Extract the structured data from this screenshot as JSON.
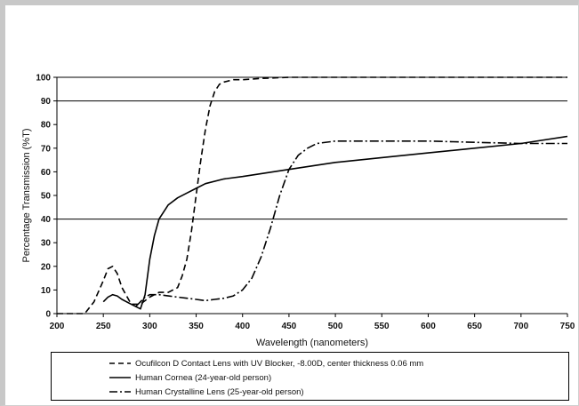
{
  "chart_data": {
    "type": "line",
    "title": "",
    "xlabel": "Wavelength (nanometers)",
    "ylabel": "Percentage Transmission (%T)",
    "xlim": [
      200,
      750
    ],
    "ylim": [
      0,
      100
    ],
    "x_ticks": [
      200,
      250,
      300,
      350,
      400,
      450,
      500,
      550,
      600,
      650,
      700,
      750
    ],
    "y_ticks": [
      0,
      10,
      20,
      30,
      40,
      50,
      60,
      70,
      80,
      90,
      100
    ],
    "reference_lines_y": [
      40,
      90,
      100
    ],
    "grid": false,
    "legend_position": "bottom",
    "series": [
      {
        "name": "Ocufilcon D Contact Lens with UV Blocker, -8.00D, center thickness 0.06 mm",
        "style": "dashed",
        "x": [
          200,
          230,
          240,
          250,
          255,
          260,
          265,
          270,
          280,
          290,
          300,
          310,
          320,
          330,
          335,
          340,
          345,
          350,
          355,
          360,
          365,
          370,
          375,
          380,
          390,
          400,
          420,
          450,
          500,
          600,
          700,
          750
        ],
        "y": [
          0,
          0,
          5,
          14,
          19,
          20,
          17,
          11,
          4,
          4,
          7,
          9,
          9,
          11,
          16,
          23,
          35,
          50,
          65,
          78,
          88,
          94,
          97,
          98,
          99,
          99,
          99.5,
          100,
          100,
          100,
          100,
          100
        ]
      },
      {
        "name": "Human Cornea (24-year-old person)",
        "style": "solid",
        "x": [
          250,
          255,
          260,
          265,
          270,
          280,
          290,
          295,
          300,
          305,
          310,
          315,
          320,
          330,
          340,
          350,
          360,
          380,
          400,
          450,
          500,
          550,
          600,
          650,
          700,
          750
        ],
        "y": [
          5,
          7,
          8,
          7.5,
          6,
          4,
          2,
          8,
          23,
          33,
          40,
          43,
          46,
          49,
          51,
          53,
          55,
          57,
          58,
          61,
          64,
          66,
          68,
          70,
          72,
          75
        ]
      },
      {
        "name": "Human Crystalline Lens (25-year-old person)",
        "style": "dashdot",
        "x": [
          285,
          290,
          295,
          300,
          310,
          320,
          330,
          340,
          350,
          360,
          370,
          380,
          390,
          400,
          410,
          420,
          430,
          440,
          450,
          460,
          470,
          480,
          500,
          550,
          600,
          650,
          700,
          750
        ],
        "y": [
          3,
          5,
          7,
          8,
          8,
          7.5,
          7,
          6.5,
          6,
          5.5,
          6,
          6.5,
          7.5,
          10,
          15,
          24,
          36,
          50,
          61,
          67,
          70,
          72,
          73,
          73,
          73,
          72.5,
          72,
          72
        ]
      }
    ]
  }
}
